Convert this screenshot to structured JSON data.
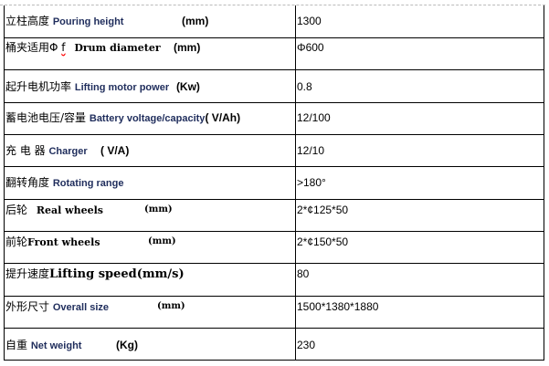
{
  "rows": [
    {
      "zh": "立柱高度",
      "en": "Pouring height",
      "unit": "(mm)",
      "value": "1300"
    },
    {
      "zh": "桶夹适用Φ",
      "zh2": "f",
      "en": "Drum diameter",
      "unit": "(mm)",
      "value": "Φ600"
    },
    {
      "zh": "起升电机功率",
      "en": "Lifting motor power",
      "unit": "(Kw)",
      "value": "0.8"
    },
    {
      "zh": "蓄电池电压/容量",
      "en": "Battery voltage/capacity",
      "unit": "( V/Ah)",
      "value": "12/100"
    },
    {
      "zh": "充 电 器",
      "en": "Charger",
      "unit": "( V/A)",
      "value": "12/10"
    },
    {
      "zh": "翻转角度",
      "en": "Rotating range",
      "unit": "",
      "value": ">180°"
    },
    {
      "zh": "后轮",
      "en": "Real wheels",
      "unit": "(mm)",
      "value": "2*¢125*50"
    },
    {
      "zh": "前轮",
      "en": "Front wheels",
      "unit": "(mm)",
      "value": "2*¢150*50"
    },
    {
      "zh": "提升速度",
      "en": "Lifting speed",
      "unit": "(mm/s)",
      "value": "80"
    },
    {
      "zh": "外形尺寸",
      "en": "Overall size",
      "unit": "(mm)",
      "value": "1500*1380*1880"
    },
    {
      "zh": "自重",
      "en": "Net weight",
      "unit": "(Kg)",
      "value": "230"
    }
  ]
}
